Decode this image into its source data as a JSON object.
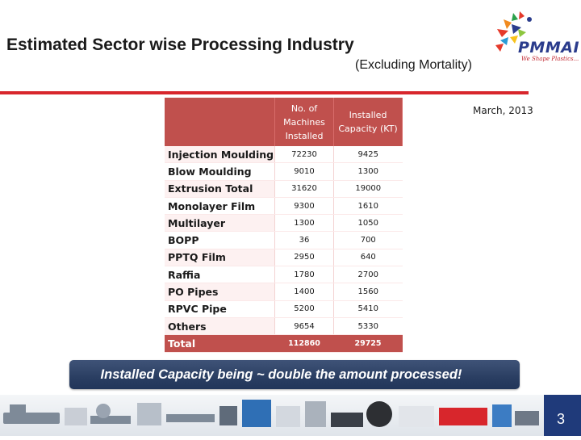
{
  "slide": {
    "title": "Estimated Sector wise Processing Industry",
    "subtitle": "(Excluding Mortality)",
    "date": "March, 2013",
    "page_number": "3"
  },
  "logo": {
    "brand": "PMMAI",
    "tagline": "We Shape Plastics..."
  },
  "table": {
    "headers": [
      "",
      "No. of Machines Installed",
      "Installed Capacity (KT)"
    ],
    "rows": [
      {
        "label": "Injection Moulding",
        "machines": "72230",
        "capacity": "9425"
      },
      {
        "label": "Blow Moulding",
        "machines": "9010",
        "capacity": "1300"
      },
      {
        "label": "Extrusion Total",
        "machines": "31620",
        "capacity": "19000"
      },
      {
        "label": "Monolayer Film",
        "machines": "9300",
        "capacity": "1610"
      },
      {
        "label": "Multilayer",
        "machines": "1300",
        "capacity": "1050"
      },
      {
        "label": "BOPP",
        "machines": "36",
        "capacity": "700"
      },
      {
        "label": "PPTQ Film",
        "machines": "2950",
        "capacity": "640"
      },
      {
        "label": "Raffia",
        "machines": "1780",
        "capacity": "2700"
      },
      {
        "label": "PO Pipes",
        "machines": "1400",
        "capacity": "1560"
      },
      {
        "label": "RPVC Pipe",
        "machines": "5200",
        "capacity": "5410"
      },
      {
        "label": "Others",
        "machines": "9654",
        "capacity": "5330"
      }
    ],
    "total": {
      "label": "Total",
      "machines": "112860",
      "capacity": "29725"
    }
  },
  "banner": {
    "text": "Installed Capacity being ~ double the amount processed!"
  },
  "colors": {
    "accent_red": "#d8262c",
    "table_header": "#c0504d",
    "banner_blue": "#2a3e62",
    "page_box": "#1f3a7a"
  }
}
